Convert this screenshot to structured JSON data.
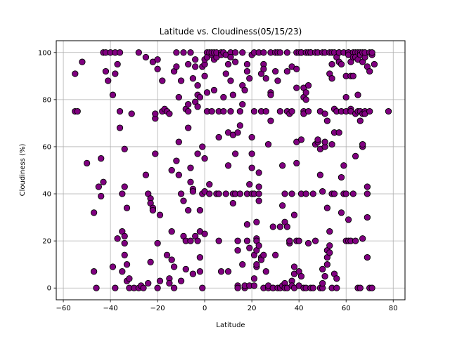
{
  "chart_data": {
    "type": "scatter",
    "title": "Latitude vs. Cloudiness(05/15/23)",
    "xlabel": "Latitude",
    "ylabel": "Cloudiness (%)",
    "xlim": [
      -63,
      85
    ],
    "ylim": [
      -5,
      105
    ],
    "xticks": [
      -60,
      -40,
      -20,
      0,
      20,
      40,
      60,
      80
    ],
    "yticks": [
      0,
      20,
      40,
      60,
      80,
      100
    ],
    "grid": true,
    "marker_color": "#800080",
    "marker_edge": "#000000",
    "points": [
      [
        -55,
        91
      ],
      [
        -55,
        75
      ],
      [
        -54,
        75
      ],
      [
        -52,
        96
      ],
      [
        -50,
        53
      ],
      [
        -47,
        7
      ],
      [
        -47,
        32
      ],
      [
        -46,
        0
      ],
      [
        -45,
        43
      ],
      [
        -44,
        39
      ],
      [
        -44,
        55
      ],
      [
        -43,
        45
      ],
      [
        -43,
        100
      ],
      [
        -42,
        92
      ],
      [
        -42,
        100
      ],
      [
        -41,
        88
      ],
      [
        -40,
        100
      ],
      [
        -39,
        9
      ],
      [
        -39,
        82
      ],
      [
        -38,
        91
      ],
      [
        -38,
        100
      ],
      [
        -38,
        0
      ],
      [
        -37,
        95
      ],
      [
        -37,
        21
      ],
      [
        -36,
        75
      ],
      [
        -36,
        100
      ],
      [
        -36,
        68
      ],
      [
        -35,
        40
      ],
      [
        -35,
        24
      ],
      [
        -35,
        7
      ],
      [
        -34,
        43
      ],
      [
        -34,
        59
      ],
      [
        -34,
        22
      ],
      [
        -34,
        14
      ],
      [
        -34,
        19
      ],
      [
        -33,
        34
      ],
      [
        -33,
        10
      ],
      [
        -33,
        3
      ],
      [
        -32,
        4
      ],
      [
        -32,
        0
      ],
      [
        -31,
        74
      ],
      [
        -30,
        0
      ],
      [
        -28,
        100
      ],
      [
        -28,
        0
      ],
      [
        -27,
        1
      ],
      [
        -26,
        0
      ],
      [
        -25,
        98
      ],
      [
        -25,
        48
      ],
      [
        -24,
        2
      ],
      [
        -24,
        40
      ],
      [
        -23,
        38
      ],
      [
        -23,
        36
      ],
      [
        -23,
        11
      ],
      [
        -22,
        96
      ],
      [
        -22,
        34
      ],
      [
        -22,
        33
      ],
      [
        -21,
        72
      ],
      [
        -21,
        74
      ],
      [
        -21,
        57
      ],
      [
        -20,
        19
      ],
      [
        -20,
        0
      ],
      [
        -20,
        97
      ],
      [
        -20,
        93
      ],
      [
        -19,
        31
      ],
      [
        -19,
        3
      ],
      [
        -18,
        88
      ],
      [
        -18,
        75
      ],
      [
        -17,
        76
      ],
      [
        -16,
        75
      ],
      [
        -16,
        14
      ],
      [
        -15,
        74
      ],
      [
        -15,
        4
      ],
      [
        -15,
        2
      ],
      [
        -14,
        12
      ],
      [
        -14,
        24
      ],
      [
        -14,
        50
      ],
      [
        -13,
        9
      ],
      [
        -13,
        0
      ],
      [
        -13,
        92
      ],
      [
        -12,
        100
      ],
      [
        -12,
        94
      ],
      [
        -12,
        54
      ],
      [
        -11,
        48
      ],
      [
        -11,
        62
      ],
      [
        -11,
        81
      ],
      [
        -10,
        88
      ],
      [
        -10,
        40
      ],
      [
        -10,
        3
      ],
      [
        -9,
        37
      ],
      [
        -9,
        22
      ],
      [
        -9,
        100
      ],
      [
        -8,
        76
      ],
      [
        -8,
        20
      ],
      [
        -8,
        8
      ],
      [
        -7,
        75
      ],
      [
        -7,
        78
      ],
      [
        -7,
        95
      ],
      [
        -7,
        68
      ],
      [
        -7,
        33
      ],
      [
        -6,
        45
      ],
      [
        -6,
        100
      ],
      [
        -6,
        51
      ],
      [
        -6,
        20
      ],
      [
        -5,
        42
      ],
      [
        -5,
        41
      ],
      [
        -5,
        89
      ],
      [
        -5,
        6
      ],
      [
        -4,
        22
      ],
      [
        -4,
        94
      ],
      [
        -4,
        79
      ],
      [
        -4,
        97
      ],
      [
        -3,
        86
      ],
      [
        -3,
        77
      ],
      [
        -3,
        57
      ],
      [
        -3,
        82
      ],
      [
        -3,
        20
      ],
      [
        -2,
        13
      ],
      [
        -2,
        7
      ],
      [
        -2,
        33
      ],
      [
        -2,
        24
      ],
      [
        -2,
        81
      ],
      [
        -1,
        94
      ],
      [
        -1,
        40
      ],
      [
        -1,
        0
      ],
      [
        -1,
        60
      ],
      [
        0,
        90
      ],
      [
        0,
        95
      ],
      [
        0,
        97
      ],
      [
        0,
        41
      ],
      [
        0,
        23
      ],
      [
        0,
        55
      ],
      [
        1,
        75
      ],
      [
        1,
        83
      ],
      [
        1,
        100
      ],
      [
        1,
        98
      ],
      [
        2,
        40
      ],
      [
        2,
        44
      ],
      [
        2,
        100
      ],
      [
        3,
        75
      ],
      [
        3,
        99
      ],
      [
        3,
        100
      ],
      [
        4,
        97
      ],
      [
        4,
        100
      ],
      [
        4,
        84
      ],
      [
        5,
        98
      ],
      [
        5,
        100
      ],
      [
        5,
        40
      ],
      [
        6,
        64
      ],
      [
        6,
        75
      ],
      [
        6,
        20
      ],
      [
        6,
        40
      ],
      [
        7,
        100
      ],
      [
        7,
        7
      ],
      [
        7,
        99
      ],
      [
        8,
        81
      ],
      [
        8,
        75
      ],
      [
        8,
        100
      ],
      [
        9,
        91
      ],
      [
        9,
        40
      ],
      [
        9,
        99
      ],
      [
        10,
        95
      ],
      [
        10,
        66
      ],
      [
        10,
        7
      ],
      [
        10,
        52
      ],
      [
        11,
        100
      ],
      [
        11,
        98
      ],
      [
        11,
        75
      ],
      [
        11,
        88
      ],
      [
        12,
        40
      ],
      [
        12,
        82
      ],
      [
        12,
        65
      ],
      [
        12,
        36
      ],
      [
        13,
        40
      ],
      [
        13,
        96
      ],
      [
        13,
        57
      ],
      [
        13,
        100
      ],
      [
        14,
        1
      ],
      [
        14,
        16
      ],
      [
        14,
        20
      ],
      [
        14,
        66
      ],
      [
        14,
        0
      ],
      [
        15,
        69
      ],
      [
        15,
        40
      ],
      [
        15,
        75
      ],
      [
        16,
        100
      ],
      [
        16,
        86
      ],
      [
        16,
        78
      ],
      [
        16,
        10
      ],
      [
        17,
        0
      ],
      [
        17,
        1
      ],
      [
        17,
        84
      ],
      [
        18,
        95
      ],
      [
        18,
        92
      ],
      [
        18,
        27
      ],
      [
        18,
        20
      ],
      [
        18,
        40
      ],
      [
        19,
        17
      ],
      [
        19,
        1
      ],
      [
        19,
        44
      ],
      [
        19,
        89
      ],
      [
        20,
        64
      ],
      [
        20,
        57
      ],
      [
        20,
        51
      ],
      [
        20,
        99
      ],
      [
        20,
        40
      ],
      [
        21,
        100
      ],
      [
        21,
        40
      ],
      [
        21,
        1
      ],
      [
        21,
        4
      ],
      [
        21,
        75
      ],
      [
        21,
        14
      ],
      [
        22,
        28
      ],
      [
        22,
        21
      ],
      [
        22,
        20
      ],
      [
        22,
        16
      ],
      [
        22,
        9
      ],
      [
        22,
        10
      ],
      [
        23,
        100
      ],
      [
        23,
        40
      ],
      [
        23,
        49
      ],
      [
        23,
        43
      ],
      [
        23,
        18
      ],
      [
        23,
        37
      ],
      [
        24,
        91
      ],
      [
        24,
        13
      ],
      [
        24,
        12
      ],
      [
        24,
        75
      ],
      [
        25,
        95
      ],
      [
        25,
        93
      ],
      [
        25,
        100
      ],
      [
        25,
        14
      ],
      [
        25,
        0
      ],
      [
        26,
        75
      ],
      [
        26,
        89
      ],
      [
        26,
        7
      ],
      [
        27,
        61
      ],
      [
        27,
        0
      ],
      [
        27,
        1
      ],
      [
        28,
        83
      ],
      [
        28,
        82
      ],
      [
        28,
        100
      ],
      [
        28,
        71
      ],
      [
        29,
        0
      ],
      [
        29,
        26
      ],
      [
        29,
        0
      ],
      [
        30,
        92
      ],
      [
        30,
        100
      ],
      [
        30,
        14
      ],
      [
        31,
        100
      ],
      [
        31,
        88
      ],
      [
        31,
        0
      ],
      [
        32,
        26
      ],
      [
        32,
        0
      ],
      [
        32,
        100
      ],
      [
        32,
        75
      ],
      [
        33,
        52
      ],
      [
        33,
        1
      ],
      [
        33,
        35
      ],
      [
        34,
        28
      ],
      [
        34,
        2
      ],
      [
        34,
        0
      ],
      [
        34,
        40
      ],
      [
        35,
        75
      ],
      [
        35,
        92
      ],
      [
        35,
        100
      ],
      [
        35,
        26
      ],
      [
        35,
        0
      ],
      [
        36,
        19
      ],
      [
        36,
        74
      ],
      [
        36,
        20
      ],
      [
        36,
        20
      ],
      [
        37,
        94
      ],
      [
        37,
        3
      ],
      [
        37,
        75
      ],
      [
        37,
        1
      ],
      [
        37,
        40
      ],
      [
        38,
        0
      ],
      [
        38,
        6
      ],
      [
        38,
        9
      ],
      [
        38,
        31
      ],
      [
        39,
        100
      ],
      [
        39,
        85
      ],
      [
        39,
        93
      ],
      [
        39,
        62
      ],
      [
        39,
        53
      ],
      [
        39,
        20
      ],
      [
        40,
        100
      ],
      [
        40,
        20
      ],
      [
        40,
        7
      ],
      [
        40,
        1
      ],
      [
        41,
        5
      ],
      [
        41,
        40
      ],
      [
        41,
        63
      ],
      [
        41,
        100
      ],
      [
        41,
        100
      ],
      [
        42,
        0
      ],
      [
        42,
        75
      ],
      [
        42,
        81
      ],
      [
        42,
        85
      ],
      [
        42,
        74
      ],
      [
        43,
        83
      ],
      [
        43,
        80
      ],
      [
        43,
        100
      ],
      [
        43,
        0
      ],
      [
        43,
        40
      ],
      [
        44,
        19
      ],
      [
        44,
        100
      ],
      [
        44,
        86
      ],
      [
        44,
        75
      ],
      [
        45,
        100
      ],
      [
        45,
        100
      ],
      [
        45,
        0
      ],
      [
        46,
        0
      ],
      [
        46,
        40
      ],
      [
        47,
        100
      ],
      [
        47,
        20
      ],
      [
        47,
        61
      ],
      [
        48,
        62
      ],
      [
        48,
        63
      ],
      [
        48,
        100
      ],
      [
        49,
        0
      ],
      [
        49,
        75
      ],
      [
        49,
        59
      ],
      [
        49,
        48
      ],
      [
        50,
        100
      ],
      [
        50,
        41
      ],
      [
        50,
        8
      ],
      [
        50,
        0
      ],
      [
        50,
        2
      ],
      [
        51,
        100
      ],
      [
        51,
        74
      ],
      [
        51,
        60
      ],
      [
        51,
        62
      ],
      [
        51,
        5
      ],
      [
        52,
        10
      ],
      [
        52,
        34
      ],
      [
        52,
        71
      ],
      [
        52,
        13
      ],
      [
        52,
        16
      ],
      [
        53,
        100
      ],
      [
        53,
        18
      ],
      [
        53,
        15
      ],
      [
        53,
        91
      ],
      [
        53,
        24
      ],
      [
        54,
        100
      ],
      [
        54,
        0
      ],
      [
        54,
        95
      ],
      [
        54,
        89
      ],
      [
        54,
        61
      ],
      [
        54,
        40
      ],
      [
        55,
        100
      ],
      [
        55,
        6
      ],
      [
        55,
        40
      ],
      [
        55,
        76
      ],
      [
        55,
        66
      ],
      [
        56,
        0
      ],
      [
        56,
        75
      ],
      [
        56,
        98
      ],
      [
        56,
        4
      ],
      [
        57,
        100
      ],
      [
        57,
        66
      ],
      [
        57,
        100
      ],
      [
        57,
        96
      ],
      [
        58,
        47
      ],
      [
        58,
        75
      ],
      [
        58,
        95
      ],
      [
        58,
        32
      ],
      [
        59,
        100
      ],
      [
        59,
        52
      ],
      [
        59,
        40
      ],
      [
        60,
        40
      ],
      [
        60,
        75
      ],
      [
        60,
        81
      ],
      [
        60,
        90
      ],
      [
        60,
        20
      ],
      [
        61,
        100
      ],
      [
        61,
        29
      ],
      [
        61,
        100
      ],
      [
        61,
        99
      ],
      [
        61,
        20
      ],
      [
        62,
        90
      ],
      [
        62,
        76
      ],
      [
        62,
        75
      ],
      [
        62,
        96
      ],
      [
        62,
        20
      ],
      [
        63,
        100
      ],
      [
        63,
        98
      ],
      [
        63,
        90
      ],
      [
        63,
        40
      ],
      [
        64,
        100
      ],
      [
        64,
        74
      ],
      [
        64,
        98
      ],
      [
        64,
        20
      ],
      [
        64,
        56
      ],
      [
        65,
        75
      ],
      [
        65,
        100
      ],
      [
        65,
        0
      ],
      [
        65,
        82
      ],
      [
        65,
        97
      ],
      [
        66,
        100
      ],
      [
        66,
        99
      ],
      [
        66,
        75
      ],
      [
        66,
        71
      ],
      [
        66,
        0
      ],
      [
        67,
        96
      ],
      [
        67,
        100
      ],
      [
        67,
        21
      ],
      [
        67,
        74
      ],
      [
        67,
        60
      ],
      [
        67,
        61
      ],
      [
        68,
        98
      ],
      [
        68,
        75
      ],
      [
        68,
        74
      ],
      [
        68,
        100
      ],
      [
        69,
        94
      ],
      [
        69,
        30
      ],
      [
        69,
        40
      ],
      [
        69,
        43
      ],
      [
        69,
        13
      ],
      [
        70,
        100
      ],
      [
        70,
        75
      ],
      [
        70,
        92
      ],
      [
        70,
        0
      ],
      [
        71,
        99
      ],
      [
        71,
        100
      ],
      [
        71,
        0
      ],
      [
        72,
        95
      ],
      [
        78,
        75
      ]
    ]
  }
}
